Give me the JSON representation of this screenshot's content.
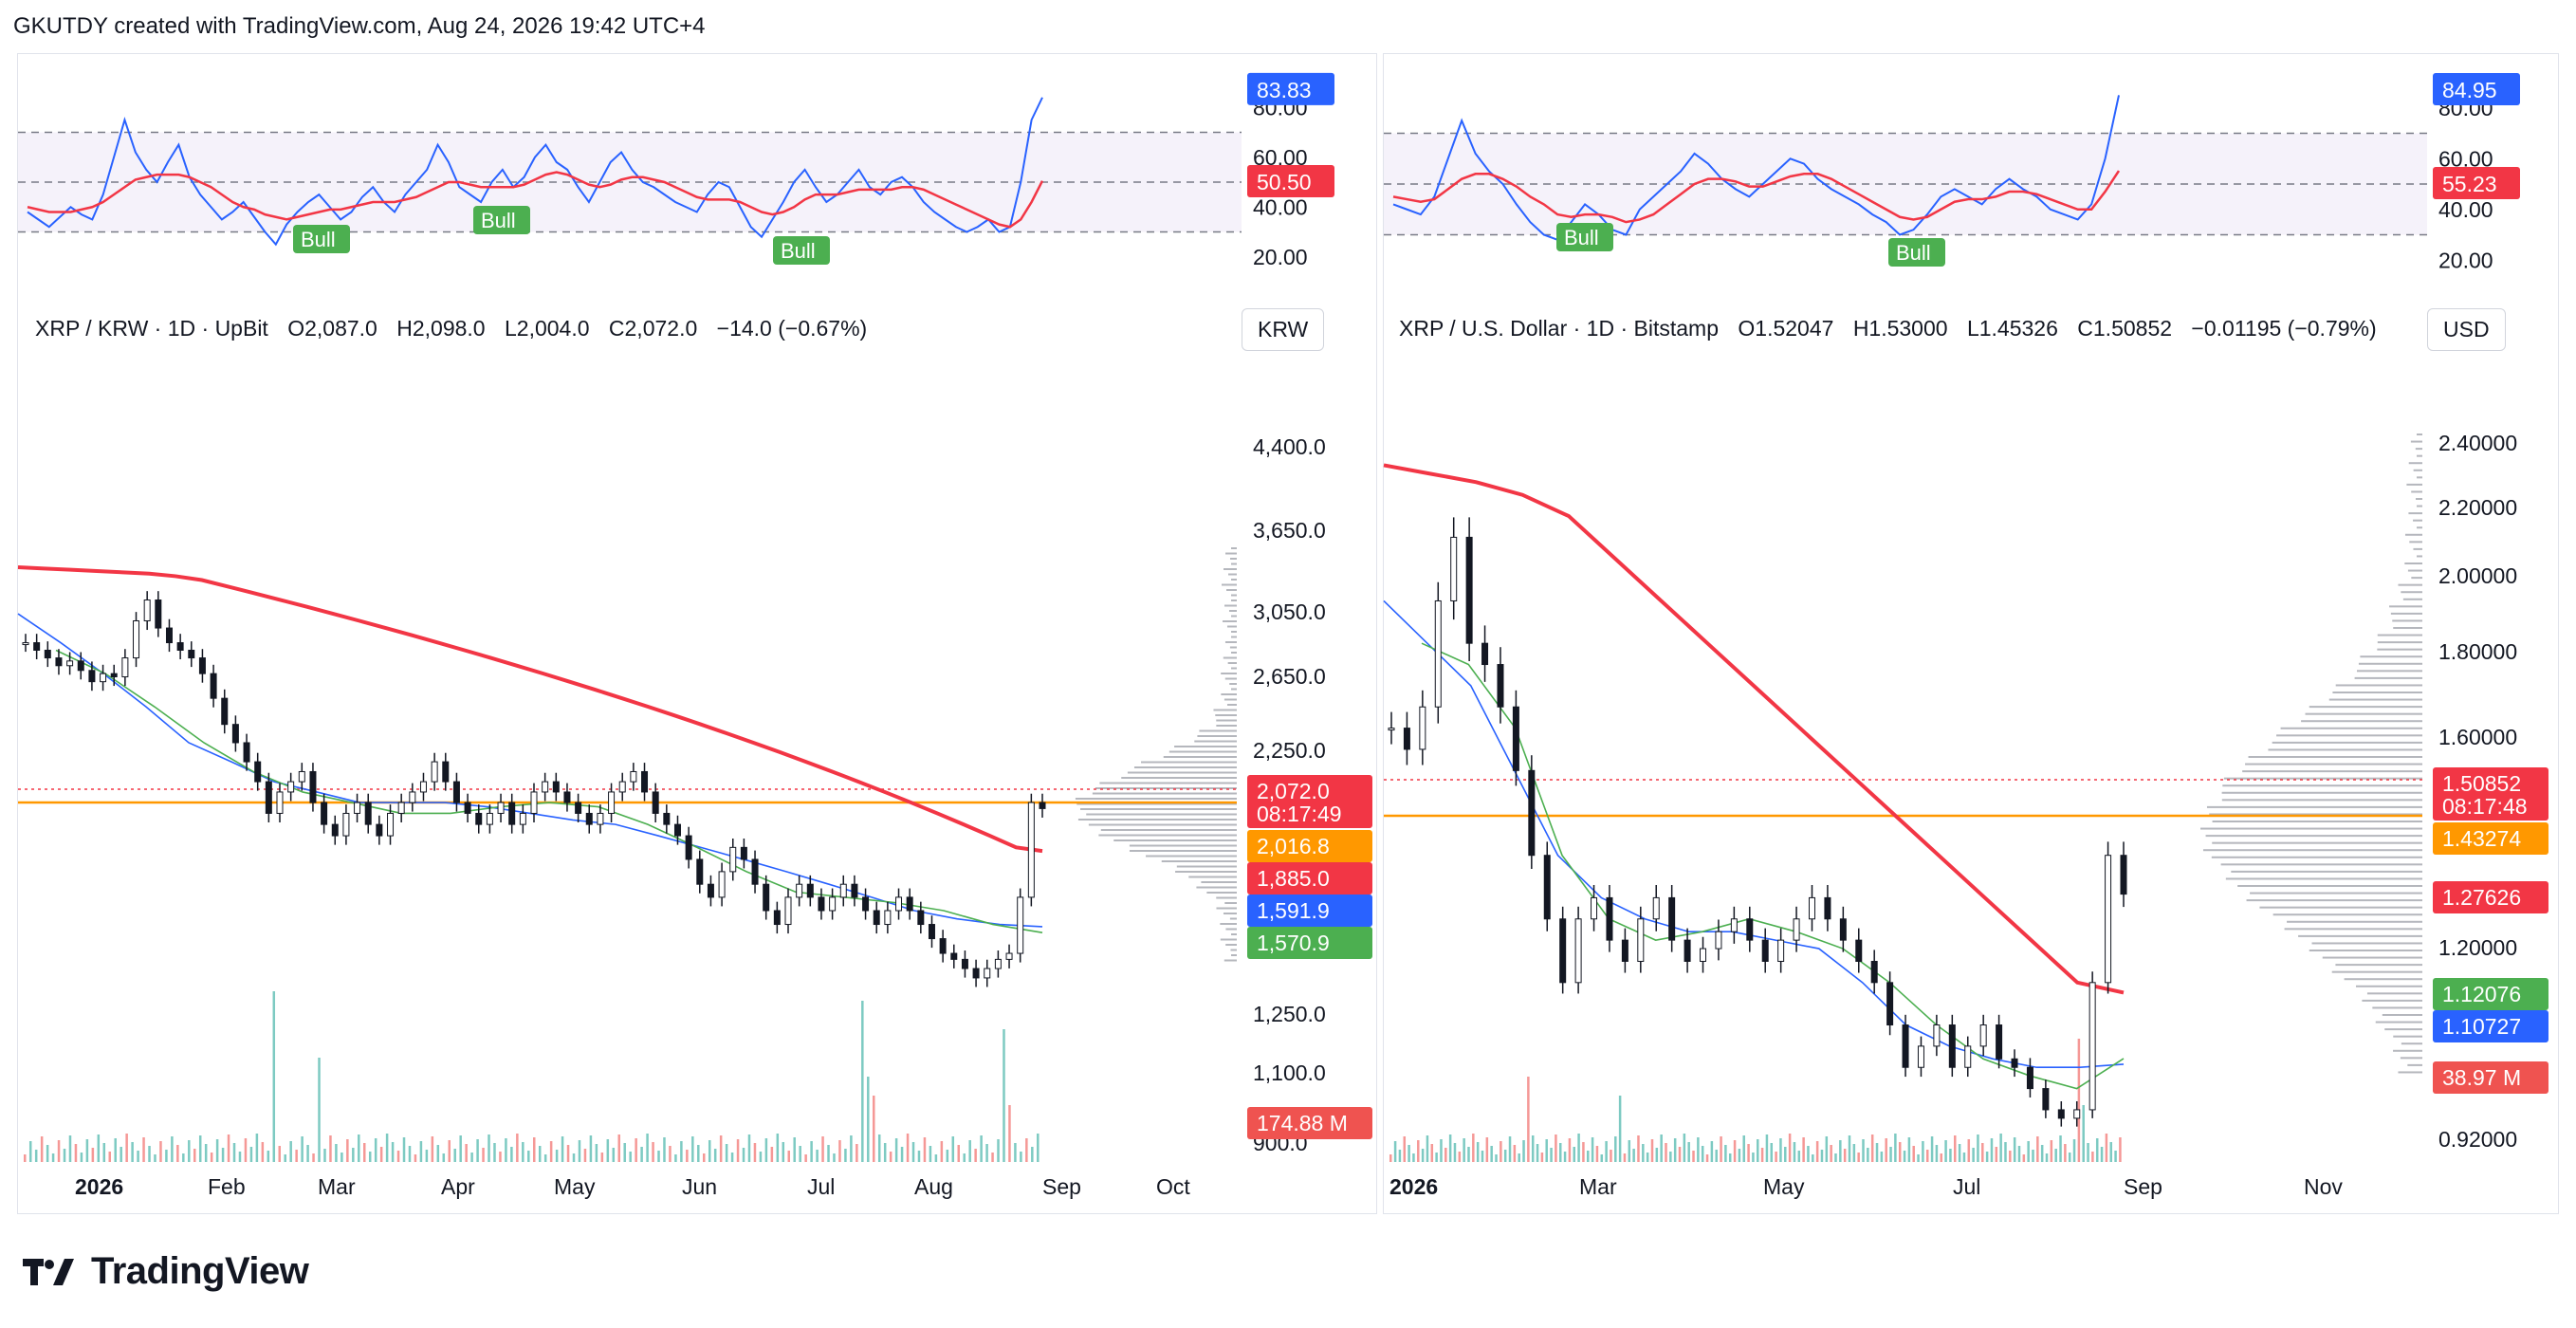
{
  "header": {
    "text": "GKUTDY created with TradingView.com, Aug 24, 2026 19:42 UTC+4"
  },
  "footer": {
    "brand": "TradingView"
  },
  "colors": {
    "rsi_line": "#2962ff",
    "rsi_ma": "#f23645",
    "bull_label": "#4caf50",
    "sma200": "#f23645",
    "sma50": "#2962ff",
    "sma20": "#4caf50",
    "candle": "#131722",
    "poc": "#ff9800",
    "volume_up": "#26a69a",
    "volume_down": "#ef5350"
  },
  "chart_data": [
    {
      "type": "candlestick",
      "symbol_line": "XRP / KRW · 1D · UpBit",
      "ohlc": {
        "open": "O2,087.0",
        "high": "H2,098.0",
        "low": "L2,004.0",
        "close": "C2,072.0",
        "change": "−14.0 (−0.67%)"
      },
      "currency": "KRW",
      "price_axis_ticks": [
        "4,400.0",
        "3,650.0",
        "3,050.0",
        "2,650.0",
        "2,250.0",
        "1,250.0",
        "1,100.0",
        "900.0"
      ],
      "time_axis_ticks": [
        "2026",
        "Feb",
        "Mar",
        "Apr",
        "May",
        "Jun",
        "Jul",
        "Aug",
        "Sep",
        "Oct"
      ],
      "price_labels": [
        {
          "text": "2,072.0",
          "sub": "08:17:49",
          "color": "#f23645"
        },
        {
          "text": "2,016.8",
          "color": "#ff9800"
        },
        {
          "text": "1,885.0",
          "color": "#f23645"
        },
        {
          "text": "1,591.9",
          "color": "#2962ff"
        },
        {
          "text": "1,570.9",
          "color": "#4caf50"
        },
        {
          "text": "174.88 M",
          "color": "#ef5350"
        }
      ],
      "rsi": {
        "ticks": [
          "80.00",
          "60.00",
          "40.00",
          "20.00"
        ],
        "levels": [
          70,
          50,
          30
        ],
        "value_label": "83.83",
        "ma_label": "50.50",
        "bull_labels": [
          "Bull",
          "Bull",
          "Bull"
        ],
        "values": [
          38,
          35,
          32,
          36,
          40,
          37,
          35,
          45,
          60,
          75,
          62,
          55,
          50,
          58,
          65,
          52,
          45,
          40,
          35,
          38,
          42,
          36,
          30,
          25,
          33,
          38,
          42,
          45,
          40,
          35,
          38,
          44,
          48,
          42,
          38,
          45,
          50,
          55,
          65,
          58,
          48,
          45,
          42,
          50,
          55,
          48,
          52,
          60,
          65,
          58,
          55,
          48,
          42,
          50,
          58,
          62,
          55,
          50,
          48,
          45,
          42,
          40,
          38,
          45,
          50,
          48,
          40,
          32,
          28,
          35,
          42,
          50,
          55,
          48,
          42,
          45,
          50,
          55,
          48,
          45,
          50,
          52,
          48,
          42,
          38,
          35,
          32,
          30,
          32,
          35,
          30,
          32,
          50,
          75,
          84
        ],
        "ma": [
          40,
          39,
          38,
          38,
          38,
          39,
          40,
          42,
          45,
          48,
          51,
          52,
          53,
          53,
          53,
          52,
          50,
          48,
          45,
          42,
          40,
          39,
          37,
          36,
          35,
          36,
          37,
          38,
          39,
          39,
          40,
          41,
          42,
          42,
          42,
          43,
          44,
          46,
          48,
          50,
          50,
          49,
          48,
          48,
          48,
          48,
          49,
          51,
          53,
          54,
          53,
          51,
          49,
          48,
          49,
          51,
          52,
          52,
          51,
          50,
          48,
          46,
          44,
          43,
          43,
          43,
          42,
          40,
          38,
          37,
          38,
          40,
          43,
          45,
          45,
          45,
          46,
          47,
          47,
          47,
          47,
          48,
          48,
          47,
          45,
          43,
          41,
          39,
          37,
          35,
          33,
          32,
          35,
          42,
          50.5
        ]
      },
      "closes": [
        3000,
        2950,
        2900,
        2850,
        2880,
        2820,
        2750,
        2800,
        2780,
        2900,
        3150,
        3300,
        3100,
        3000,
        2950,
        2900,
        2800,
        2650,
        2500,
        2400,
        2300,
        2200,
        2050,
        2150,
        2200,
        2250,
        2100,
        2000,
        1950,
        2050,
        2100,
        2000,
        1950,
        2050,
        2100,
        2150,
        2200,
        2300,
        2200,
        2100,
        2050,
        2000,
        2050,
        2100,
        2000,
        2050,
        2150,
        2200,
        2150,
        2100,
        2050,
        2000,
        2050,
        2150,
        2200,
        2250,
        2150,
        2050,
        2000,
        1950,
        1850,
        1750,
        1700,
        1800,
        1900,
        1850,
        1750,
        1650,
        1600,
        1700,
        1750,
        1700,
        1650,
        1700,
        1750,
        1700,
        1650,
        1600,
        1650,
        1700,
        1650,
        1600,
        1550,
        1500,
        1480,
        1450,
        1420,
        1450,
        1480,
        1500,
        1700,
        2100,
        2072
      ],
      "sma200": [
        3550,
        3540,
        3530,
        3520,
        3510,
        3500,
        3480,
        3450,
        3400,
        3350,
        3300,
        3250,
        3200,
        3150,
        3100,
        3050,
        3000,
        2950,
        2900,
        2850,
        2800,
        2750,
        2700,
        2650,
        2600,
        2550,
        2500,
        2450,
        2400,
        2350,
        2300,
        2250,
        2200,
        2150,
        2100,
        2050,
        2000,
        1950,
        1900,
        1885
      ],
      "sma50": [
        3200,
        3000,
        2800,
        2600,
        2400,
        2300,
        2200,
        2150,
        2100,
        2100,
        2100,
        2080,
        2050,
        2020,
        2000,
        1950,
        1900,
        1850,
        1800,
        1750,
        1700,
        1650,
        1620,
        1600,
        1591.9
      ],
      "sma20": [
        2950,
        2800,
        2600,
        2400,
        2250,
        2150,
        2100,
        2050,
        2050,
        2080,
        2100,
        2080,
        2000,
        1900,
        1800,
        1720,
        1700,
        1680,
        1650,
        1600,
        1570.9
      ],
      "volume_profile_poc": "2,016.8"
    },
    {
      "type": "candlestick",
      "symbol_line": "XRP / U.S. Dollar · 1D · Bitstamp",
      "ohlc": {
        "open": "O1.52047",
        "high": "H1.53000",
        "low": "L1.45326",
        "close": "C1.50852",
        "change": "−0.01195 (−0.79%)"
      },
      "currency": "USD",
      "price_axis_ticks": [
        "2.40000",
        "2.20000",
        "2.00000",
        "1.80000",
        "1.60000",
        "1.20000",
        "1.20000",
        "0.92000"
      ],
      "time_axis_ticks": [
        "2026",
        "Mar",
        "May",
        "Jul",
        "Sep",
        "Nov"
      ],
      "price_labels": [
        {
          "text": "1.50852",
          "sub": "08:17:48",
          "color": "#f23645"
        },
        {
          "text": "1.43274",
          "color": "#ff9800"
        },
        {
          "text": "1.27626",
          "color": "#f23645"
        },
        {
          "text": "1.12076",
          "color": "#4caf50"
        },
        {
          "text": "1.10727",
          "color": "#2962ff"
        },
        {
          "text": "38.97 M",
          "color": "#ef5350"
        }
      ],
      "rsi": {
        "ticks": [
          "80.00",
          "60.00",
          "40.00",
          "20.00"
        ],
        "levels": [
          70,
          50,
          30
        ],
        "value_label": "84.95",
        "ma_label": "55.23",
        "bull_labels": [
          "Bull",
          "Bull"
        ],
        "values": [
          42,
          40,
          38,
          45,
          60,
          75,
          62,
          55,
          50,
          42,
          35,
          30,
          28,
          35,
          42,
          38,
          32,
          30,
          40,
          45,
          50,
          55,
          62,
          58,
          52,
          48,
          45,
          50,
          55,
          60,
          58,
          52,
          48,
          45,
          42,
          38,
          35,
          30,
          32,
          38,
          45,
          48,
          45,
          42,
          48,
          52,
          48,
          45,
          40,
          38,
          36,
          42,
          60,
          85
        ],
        "ma": [
          45,
          44,
          43,
          44,
          48,
          52,
          54,
          54,
          52,
          49,
          45,
          42,
          38,
          37,
          38,
          38,
          37,
          35,
          36,
          38,
          42,
          46,
          50,
          52,
          52,
          51,
          49,
          49,
          51,
          53,
          54,
          54,
          52,
          49,
          46,
          43,
          40,
          37,
          36,
          37,
          40,
          43,
          44,
          44,
          45,
          47,
          47,
          46,
          44,
          42,
          40,
          40,
          47,
          55.23
        ]
      },
      "closes": [
        1.9,
        1.85,
        1.95,
        2.2,
        2.35,
        2.1,
        2.05,
        1.95,
        1.8,
        1.6,
        1.45,
        1.3,
        1.45,
        1.5,
        1.4,
        1.35,
        1.45,
        1.5,
        1.4,
        1.35,
        1.38,
        1.42,
        1.45,
        1.4,
        1.35,
        1.4,
        1.45,
        1.5,
        1.45,
        1.4,
        1.35,
        1.3,
        1.2,
        1.1,
        1.15,
        1.2,
        1.1,
        1.15,
        1.2,
        1.12,
        1.1,
        1.05,
        1.0,
        0.98,
        1.0,
        1.3,
        1.6,
        1.50852
      ],
      "sma200": [
        2.52,
        2.5,
        2.48,
        2.45,
        2.4,
        2.3,
        2.2,
        2.1,
        2.0,
        1.9,
        1.8,
        1.7,
        1.6,
        1.5,
        1.4,
        1.3,
        1.27626
      ],
      "sma50": [
        2.2,
        2.1,
        2.0,
        1.8,
        1.6,
        1.5,
        1.45,
        1.42,
        1.42,
        1.4,
        1.38,
        1.3,
        1.2,
        1.15,
        1.12,
        1.1,
        1.1,
        1.10727
      ],
      "sma20": [
        2.1,
        2.05,
        1.9,
        1.6,
        1.45,
        1.4,
        1.42,
        1.45,
        1.42,
        1.38,
        1.3,
        1.2,
        1.12,
        1.08,
        1.05,
        1.12076
      ],
      "volume_profile_poc": "1.43274"
    }
  ]
}
